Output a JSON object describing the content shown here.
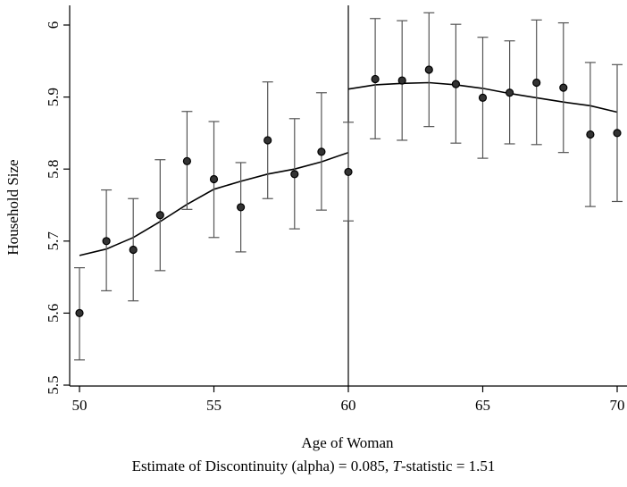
{
  "chart_data": {
    "type": "scatter",
    "xlabel": "Age of Woman",
    "ylabel": "Household Size",
    "xlim": [
      50,
      70
    ],
    "ylim": [
      5.5,
      6.0
    ],
    "xticks": [
      "50",
      "55",
      "60",
      "65",
      "70"
    ],
    "yticks": [
      "5.5",
      "5.6",
      "5.7",
      "5.8",
      "5.9",
      "6"
    ],
    "cutoff": 60,
    "points": [
      {
        "x": 50,
        "y": 5.6,
        "lo": 5.535,
        "hi": 5.663
      },
      {
        "x": 51,
        "y": 5.7,
        "lo": 5.631,
        "hi": 5.771
      },
      {
        "x": 52,
        "y": 5.688,
        "lo": 5.617,
        "hi": 5.759
      },
      {
        "x": 53,
        "y": 5.736,
        "lo": 5.659,
        "hi": 5.813
      },
      {
        "x": 54,
        "y": 5.811,
        "lo": 5.744,
        "hi": 5.88
      },
      {
        "x": 55,
        "y": 5.786,
        "lo": 5.705,
        "hi": 5.866
      },
      {
        "x": 56,
        "y": 5.747,
        "lo": 5.685,
        "hi": 5.809
      },
      {
        "x": 57,
        "y": 5.84,
        "lo": 5.759,
        "hi": 5.921
      },
      {
        "x": 58,
        "y": 5.793,
        "lo": 5.717,
        "hi": 5.87
      },
      {
        "x": 59,
        "y": 5.824,
        "lo": 5.743,
        "hi": 5.906
      },
      {
        "x": 60,
        "y": 5.796,
        "lo": 5.728,
        "hi": 5.865
      },
      {
        "x": 61,
        "y": 5.925,
        "lo": 5.842,
        "hi": 6.009
      },
      {
        "x": 62,
        "y": 5.923,
        "lo": 5.84,
        "hi": 6.006
      },
      {
        "x": 63,
        "y": 5.938,
        "lo": 5.859,
        "hi": 6.017
      },
      {
        "x": 64,
        "y": 5.918,
        "lo": 5.836,
        "hi": 6.001
      },
      {
        "x": 65,
        "y": 5.899,
        "lo": 5.815,
        "hi": 5.983
      },
      {
        "x": 66,
        "y": 5.906,
        "lo": 5.835,
        "hi": 5.978
      },
      {
        "x": 67,
        "y": 5.92,
        "lo": 5.834,
        "hi": 6.007
      },
      {
        "x": 68,
        "y": 5.913,
        "lo": 5.823,
        "hi": 6.003
      },
      {
        "x": 69,
        "y": 5.848,
        "lo": 5.748,
        "hi": 5.948
      },
      {
        "x": 70,
        "y": 5.85,
        "lo": 5.755,
        "hi": 5.945
      }
    ],
    "fit_left": {
      "x": [
        50,
        51,
        52,
        53,
        54,
        55,
        56,
        57,
        58,
        59,
        60
      ],
      "y": [
        5.68,
        5.689,
        5.705,
        5.727,
        5.751,
        5.772,
        5.783,
        5.793,
        5.8,
        5.81,
        5.823
      ]
    },
    "fit_right": {
      "x": [
        60,
        61,
        62,
        63,
        64,
        65,
        66,
        67,
        68,
        69,
        70
      ],
      "y": [
        5.911,
        5.917,
        5.919,
        5.92,
        5.917,
        5.912,
        5.905,
        5.899,
        5.893,
        5.888,
        5.879
      ]
    },
    "colors": {
      "line": "#000000",
      "marker_fill": "#333333",
      "marker_stroke": "#000000",
      "errorbar": "#555555"
    }
  },
  "caption": {
    "prefix": "Estimate of Discontinuity (alpha) = 0.085, ",
    "stat_name": "T",
    "suffix": "-statistic = 1.51"
  }
}
